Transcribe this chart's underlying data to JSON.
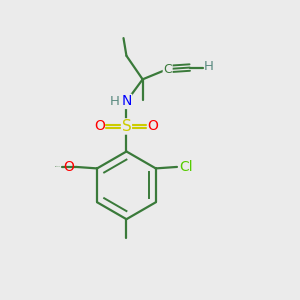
{
  "background_color": "#ebebeb",
  "bond_color": "#3a7a3a",
  "atom_colors": {
    "O": "#ff0000",
    "S": "#cccc00",
    "N": "#0000ff",
    "Cl": "#55cc00",
    "C": "#3a7a3a",
    "H": "#5a8a80"
  },
  "figsize": [
    3.0,
    3.0
  ],
  "dpi": 100
}
